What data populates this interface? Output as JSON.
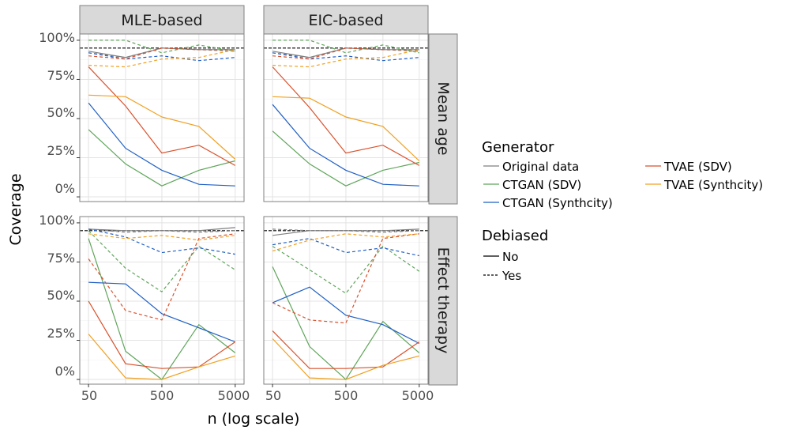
{
  "chart_data": {
    "type": "line",
    "xlabel": "n (log scale)",
    "ylabel": "Coverage",
    "x_scale": "log",
    "x_ticks": [
      50,
      500,
      5000
    ],
    "x_tick_labels": [
      "50",
      "500",
      "5000"
    ],
    "y_ticks": [
      0,
      0.25,
      0.5,
      0.75,
      1.0
    ],
    "y_tick_labels": [
      "0%",
      "25%",
      "50%",
      "75%",
      "100%"
    ],
    "ylim": [
      -0.03,
      1.04
    ],
    "reference_line": 0.95,
    "column_facets": [
      "MLE-based",
      "EIC-based"
    ],
    "row_facets": [
      "Mean age",
      "Effect therapy"
    ],
    "x": [
      50,
      160,
      500,
      1600,
      5000
    ],
    "legend": {
      "generator_title": "Generator",
      "generators": [
        {
          "key": "orig",
          "label": "Original data",
          "color": "#7f7f7f"
        },
        {
          "key": "ctgan_sdv",
          "label": "CTGAN (SDV)",
          "color": "#5fa55a"
        },
        {
          "key": "ctgan_syn",
          "label": "CTGAN (Synthcity)",
          "color": "#1f5fc4"
        },
        {
          "key": "tvae_sdv",
          "label": "TVAE (SDV)",
          "color": "#d9512c"
        },
        {
          "key": "tvae_syn",
          "label": "TVAE (Synthcity)",
          "color": "#f0a020"
        }
      ],
      "debiased_title": "Debiased",
      "debiased": [
        {
          "key": "no",
          "label": "No",
          "dash": false
        },
        {
          "key": "yes",
          "label": "Yes",
          "dash": true
        }
      ]
    },
    "panels": [
      {
        "col": 0,
        "row": 0,
        "series": [
          {
            "generator": "orig",
            "debiased": "no",
            "values": [
              0.93,
              0.89,
              0.95,
              0.94,
              0.94
            ]
          },
          {
            "generator": "ctgan_sdv",
            "debiased": "no",
            "values": [
              0.43,
              0.21,
              0.07,
              0.17,
              0.23
            ]
          },
          {
            "generator": "ctgan_syn",
            "debiased": "no",
            "values": [
              0.6,
              0.31,
              0.17,
              0.08,
              0.07
            ]
          },
          {
            "generator": "tvae_sdv",
            "debiased": "no",
            "values": [
              0.83,
              0.58,
              0.28,
              0.33,
              0.2
            ]
          },
          {
            "generator": "tvae_syn",
            "debiased": "no",
            "values": [
              0.65,
              0.64,
              0.51,
              0.45,
              0.24
            ]
          },
          {
            "generator": "orig",
            "debiased": "yes",
            "values": [
              0.92,
              0.89,
              0.95,
              0.94,
              0.93
            ]
          },
          {
            "generator": "ctgan_sdv",
            "debiased": "yes",
            "values": [
              1.0,
              1.0,
              0.92,
              0.97,
              0.93
            ]
          },
          {
            "generator": "ctgan_syn",
            "debiased": "yes",
            "values": [
              0.92,
              0.88,
              0.9,
              0.87,
              0.89
            ]
          },
          {
            "generator": "tvae_sdv",
            "debiased": "yes",
            "values": [
              0.9,
              0.88,
              0.95,
              0.94,
              0.94
            ]
          },
          {
            "generator": "tvae_syn",
            "debiased": "yes",
            "values": [
              0.84,
              0.83,
              0.88,
              0.89,
              0.94
            ]
          }
        ]
      },
      {
        "col": 1,
        "row": 0,
        "series": [
          {
            "generator": "orig",
            "debiased": "no",
            "values": [
              0.93,
              0.89,
              0.95,
              0.94,
              0.94
            ]
          },
          {
            "generator": "ctgan_sdv",
            "debiased": "no",
            "values": [
              0.42,
              0.21,
              0.07,
              0.17,
              0.22
            ]
          },
          {
            "generator": "ctgan_syn",
            "debiased": "no",
            "values": [
              0.59,
              0.31,
              0.17,
              0.08,
              0.07
            ]
          },
          {
            "generator": "tvae_sdv",
            "debiased": "no",
            "values": [
              0.83,
              0.57,
              0.28,
              0.33,
              0.2
            ]
          },
          {
            "generator": "tvae_syn",
            "debiased": "no",
            "values": [
              0.64,
              0.63,
              0.51,
              0.45,
              0.23
            ]
          },
          {
            "generator": "orig",
            "debiased": "yes",
            "values": [
              0.92,
              0.89,
              0.95,
              0.94,
              0.93
            ]
          },
          {
            "generator": "ctgan_sdv",
            "debiased": "yes",
            "values": [
              1.0,
              1.0,
              0.92,
              0.97,
              0.92
            ]
          },
          {
            "generator": "ctgan_syn",
            "debiased": "yes",
            "values": [
              0.92,
              0.88,
              0.9,
              0.87,
              0.89
            ]
          },
          {
            "generator": "tvae_sdv",
            "debiased": "yes",
            "values": [
              0.9,
              0.88,
              0.95,
              0.94,
              0.94
            ]
          },
          {
            "generator": "tvae_syn",
            "debiased": "yes",
            "values": [
              0.84,
              0.83,
              0.88,
              0.89,
              0.94
            ]
          }
        ]
      },
      {
        "col": 0,
        "row": 1,
        "series": [
          {
            "generator": "orig",
            "debiased": "no",
            "values": [
              0.96,
              0.95,
              0.95,
              0.95,
              0.97
            ]
          },
          {
            "generator": "ctgan_sdv",
            "debiased": "no",
            "values": [
              0.9,
              0.18,
              0.0,
              0.35,
              0.17
            ]
          },
          {
            "generator": "ctgan_syn",
            "debiased": "no",
            "values": [
              0.62,
              0.61,
              0.42,
              0.33,
              0.24
            ]
          },
          {
            "generator": "tvae_sdv",
            "debiased": "no",
            "values": [
              0.5,
              0.1,
              0.07,
              0.08,
              0.24
            ]
          },
          {
            "generator": "tvae_syn",
            "debiased": "no",
            "values": [
              0.29,
              0.01,
              0.0,
              0.08,
              0.15
            ]
          },
          {
            "generator": "orig",
            "debiased": "yes",
            "values": [
              0.96,
              0.94,
              0.95,
              0.94,
              0.95
            ]
          },
          {
            "generator": "ctgan_sdv",
            "debiased": "yes",
            "values": [
              0.95,
              0.71,
              0.56,
              0.85,
              0.7
            ]
          },
          {
            "generator": "ctgan_syn",
            "debiased": "yes",
            "values": [
              0.96,
              0.91,
              0.81,
              0.84,
              0.8
            ]
          },
          {
            "generator": "tvae_sdv",
            "debiased": "yes",
            "values": [
              0.77,
              0.44,
              0.38,
              0.9,
              0.93
            ]
          },
          {
            "generator": "tvae_syn",
            "debiased": "yes",
            "values": [
              0.93,
              0.9,
              0.92,
              0.89,
              0.92
            ]
          }
        ]
      },
      {
        "col": 1,
        "row": 1,
        "series": [
          {
            "generator": "orig",
            "debiased": "no",
            "values": [
              0.92,
              0.95,
              0.95,
              0.95,
              0.96
            ]
          },
          {
            "generator": "ctgan_sdv",
            "debiased": "no",
            "values": [
              0.72,
              0.21,
              0.0,
              0.37,
              0.17
            ]
          },
          {
            "generator": "ctgan_syn",
            "debiased": "no",
            "values": [
              0.49,
              0.59,
              0.41,
              0.35,
              0.23
            ]
          },
          {
            "generator": "tvae_sdv",
            "debiased": "no",
            "values": [
              0.31,
              0.07,
              0.07,
              0.08,
              0.24
            ]
          },
          {
            "generator": "tvae_syn",
            "debiased": "no",
            "values": [
              0.26,
              0.01,
              0.0,
              0.09,
              0.15
            ]
          },
          {
            "generator": "orig",
            "debiased": "yes",
            "values": [
              0.96,
              0.95,
              0.95,
              0.94,
              0.95
            ]
          },
          {
            "generator": "ctgan_sdv",
            "debiased": "yes",
            "values": [
              0.85,
              0.7,
              0.55,
              0.85,
              0.69
            ]
          },
          {
            "generator": "ctgan_syn",
            "debiased": "yes",
            "values": [
              0.86,
              0.9,
              0.81,
              0.84,
              0.79
            ]
          },
          {
            "generator": "tvae_sdv",
            "debiased": "yes",
            "values": [
              0.49,
              0.38,
              0.36,
              0.9,
              0.93
            ]
          },
          {
            "generator": "tvae_syn",
            "debiased": "yes",
            "values": [
              0.82,
              0.89,
              0.93,
              0.91,
              0.93
            ]
          }
        ]
      }
    ]
  }
}
